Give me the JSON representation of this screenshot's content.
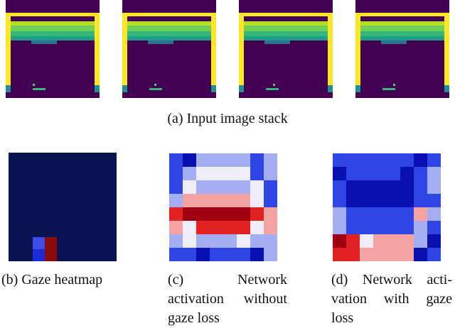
{
  "panels": [
    {
      "caption_lines": [
        "(a)  Input image stack"
      ]
    },
    {
      "caption_lines": [
        "(b)  Gaze heatmap"
      ]
    },
    {
      "caption_lines": [
        "(c)  Network",
        "activation without",
        "gaze loss"
      ]
    },
    {
      "caption_lines": [
        "(d)  Network acti-",
        "vation with gaze",
        "loss"
      ]
    }
  ]
}
